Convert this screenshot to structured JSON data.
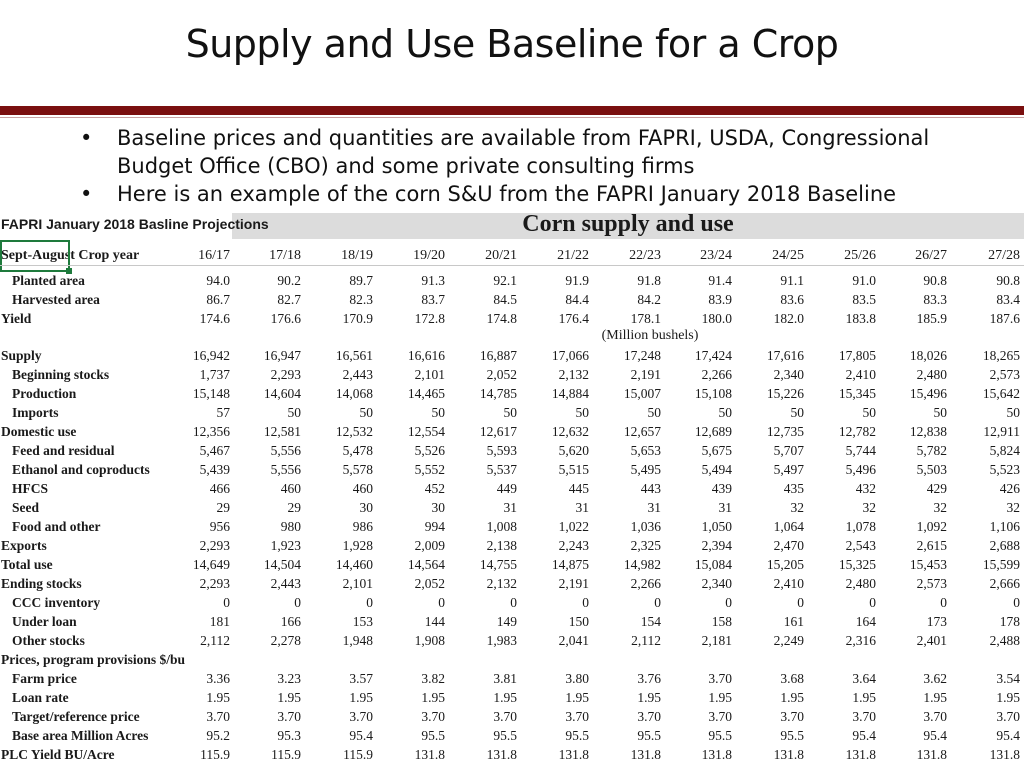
{
  "slide": {
    "title": "Supply and Use Baseline for a Crop",
    "bullets": [
      "Baseline prices and quantities are available from FAPRI, USDA, Congressional Budget Office (CBO) and some private consulting firms",
      "Here is an example of the corn S&U from the FAPRI January 2018 Baseline"
    ],
    "bullet_glyph": "•"
  },
  "table": {
    "projection_label": "FAPRI January 2018 Basline Projections",
    "title": "Corn supply and use",
    "crop_year_label": "Sept-August Crop year",
    "units_label": "(Million bushels)",
    "years": [
      "16/17",
      "17/18",
      "18/19",
      "19/20",
      "20/21",
      "21/22",
      "22/23",
      "23/24",
      "24/25",
      "25/26",
      "26/27",
      "27/28"
    ],
    "rows": [
      {
        "label": "Planted area",
        "indent": 1,
        "values": [
          "94.0",
          "90.2",
          "89.7",
          "91.3",
          "92.1",
          "91.9",
          "91.8",
          "91.4",
          "91.1",
          "91.0",
          "90.8",
          "90.8"
        ]
      },
      {
        "label": "Harvested area",
        "indent": 1,
        "values": [
          "86.7",
          "82.7",
          "82.3",
          "83.7",
          "84.5",
          "84.4",
          "84.2",
          "83.9",
          "83.6",
          "83.5",
          "83.3",
          "83.4"
        ]
      },
      {
        "label": "Yield",
        "indent": 0,
        "values": [
          "174.6",
          "176.6",
          "170.9",
          "172.8",
          "174.8",
          "176.4",
          "178.1",
          "180.0",
          "182.0",
          "183.8",
          "185.9",
          "187.6"
        ]
      },
      {
        "label": "Supply",
        "indent": 0,
        "values": [
          "16,942",
          "16,947",
          "16,561",
          "16,616",
          "16,887",
          "17,066",
          "17,248",
          "17,424",
          "17,616",
          "17,805",
          "18,026",
          "18,265"
        ]
      },
      {
        "label": "Beginning stocks",
        "indent": 1,
        "values": [
          "1,737",
          "2,293",
          "2,443",
          "2,101",
          "2,052",
          "2,132",
          "2,191",
          "2,266",
          "2,340",
          "2,410",
          "2,480",
          "2,573"
        ]
      },
      {
        "label": "Production",
        "indent": 1,
        "values": [
          "15,148",
          "14,604",
          "14,068",
          "14,465",
          "14,785",
          "14,884",
          "15,007",
          "15,108",
          "15,226",
          "15,345",
          "15,496",
          "15,642"
        ]
      },
      {
        "label": "Imports",
        "indent": 1,
        "values": [
          "57",
          "50",
          "50",
          "50",
          "50",
          "50",
          "50",
          "50",
          "50",
          "50",
          "50",
          "50"
        ]
      },
      {
        "label": "Domestic use",
        "indent": 0,
        "values": [
          "12,356",
          "12,581",
          "12,532",
          "12,554",
          "12,617",
          "12,632",
          "12,657",
          "12,689",
          "12,735",
          "12,782",
          "12,838",
          "12,911"
        ]
      },
      {
        "label": "Feed and residual",
        "indent": 1,
        "values": [
          "5,467",
          "5,556",
          "5,478",
          "5,526",
          "5,593",
          "5,620",
          "5,653",
          "5,675",
          "5,707",
          "5,744",
          "5,782",
          "5,824"
        ]
      },
      {
        "label": "Ethanol and coproducts",
        "indent": 1,
        "values": [
          "5,439",
          "5,556",
          "5,578",
          "5,552",
          "5,537",
          "5,515",
          "5,495",
          "5,494",
          "5,497",
          "5,496",
          "5,503",
          "5,523"
        ]
      },
      {
        "label": "HFCS",
        "indent": 1,
        "values": [
          "466",
          "460",
          "460",
          "452",
          "449",
          "445",
          "443",
          "439",
          "435",
          "432",
          "429",
          "426"
        ]
      },
      {
        "label": "Seed",
        "indent": 1,
        "values": [
          "29",
          "29",
          "30",
          "30",
          "31",
          "31",
          "31",
          "31",
          "32",
          "32",
          "32",
          "32"
        ]
      },
      {
        "label": "Food and other",
        "indent": 1,
        "values": [
          "956",
          "980",
          "986",
          "994",
          "1,008",
          "1,022",
          "1,036",
          "1,050",
          "1,064",
          "1,078",
          "1,092",
          "1,106"
        ]
      },
      {
        "label": "Exports",
        "indent": 0,
        "values": [
          "2,293",
          "1,923",
          "1,928",
          "2,009",
          "2,138",
          "2,243",
          "2,325",
          "2,394",
          "2,470",
          "2,543",
          "2,615",
          "2,688"
        ]
      },
      {
        "label": "Total use",
        "indent": 0,
        "values": [
          "14,649",
          "14,504",
          "14,460",
          "14,564",
          "14,755",
          "14,875",
          "14,982",
          "15,084",
          "15,205",
          "15,325",
          "15,453",
          "15,599"
        ]
      },
      {
        "label": "Ending stocks",
        "indent": 0,
        "values": [
          "2,293",
          "2,443",
          "2,101",
          "2,052",
          "2,132",
          "2,191",
          "2,266",
          "2,340",
          "2,410",
          "2,480",
          "2,573",
          "2,666"
        ]
      },
      {
        "label": "CCC inventory",
        "indent": 1,
        "values": [
          "0",
          "0",
          "0",
          "0",
          "0",
          "0",
          "0",
          "0",
          "0",
          "0",
          "0",
          "0"
        ]
      },
      {
        "label": "Under loan",
        "indent": 1,
        "values": [
          "181",
          "166",
          "153",
          "144",
          "149",
          "150",
          "154",
          "158",
          "161",
          "164",
          "173",
          "178"
        ]
      },
      {
        "label": "Other stocks",
        "indent": 1,
        "values": [
          "2,112",
          "2,278",
          "1,948",
          "1,908",
          "1,983",
          "2,041",
          "2,112",
          "2,181",
          "2,249",
          "2,316",
          "2,401",
          "2,488"
        ]
      },
      {
        "label": "Prices, program provisions $/bu",
        "indent": 0,
        "values": []
      },
      {
        "label": "Farm price",
        "indent": 1,
        "values": [
          "3.36",
          "3.23",
          "3.57",
          "3.82",
          "3.81",
          "3.80",
          "3.76",
          "3.70",
          "3.68",
          "3.64",
          "3.62",
          "3.54"
        ]
      },
      {
        "label": "Loan rate",
        "indent": 1,
        "values": [
          "1.95",
          "1.95",
          "1.95",
          "1.95",
          "1.95",
          "1.95",
          "1.95",
          "1.95",
          "1.95",
          "1.95",
          "1.95",
          "1.95"
        ]
      },
      {
        "label": "Target/reference price",
        "indent": 1,
        "values": [
          "3.70",
          "3.70",
          "3.70",
          "3.70",
          "3.70",
          "3.70",
          "3.70",
          "3.70",
          "3.70",
          "3.70",
          "3.70",
          "3.70"
        ]
      },
      {
        "label": "Base area Million Acres",
        "indent": 1,
        "values": [
          "95.2",
          "95.3",
          "95.4",
          "95.5",
          "95.5",
          "95.5",
          "95.5",
          "95.5",
          "95.5",
          "95.4",
          "95.4",
          "95.4"
        ]
      },
      {
        "label": "PLC Yield BU/Acre",
        "indent": 0,
        "values": [
          "115.9",
          "115.9",
          "115.9",
          "131.8",
          "131.8",
          "131.8",
          "131.8",
          "131.8",
          "131.8",
          "131.8",
          "131.8",
          "131.8"
        ]
      }
    ]
  }
}
